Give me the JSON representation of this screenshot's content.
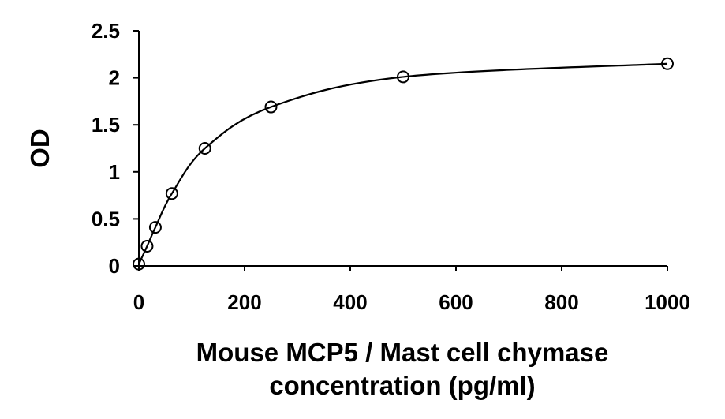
{
  "chart_data": {
    "type": "scatter",
    "title": "",
    "xlabel": [
      "Mouse MCP5 / Mast cell chymase",
      "concentration (pg/ml)"
    ],
    "ylabel": "OD",
    "xlim": [
      0,
      1000
    ],
    "ylim": [
      0,
      2.5
    ],
    "x_ticks": [
      0,
      200,
      400,
      600,
      800,
      1000
    ],
    "x_tick_labels": [
      "0",
      "200",
      "400",
      "600",
      "800",
      "1000"
    ],
    "y_ticks": [
      0,
      0.5,
      1,
      1.5,
      2,
      2.5
    ],
    "y_tick_labels": [
      "0",
      "0.5",
      "1",
      "1.5",
      "2",
      "2.5"
    ],
    "grid": false,
    "legend": "none",
    "marker_style": "open-circle",
    "fit_line": "smooth",
    "series": [
      {
        "x": [
          0,
          15.6,
          31.25,
          62.5,
          125,
          250,
          500,
          1000
        ],
        "y": [
          0.02,
          0.21,
          0.41,
          0.77,
          1.25,
          1.69,
          2.01,
          2.15
        ]
      }
    ],
    "colors": {
      "markers": "#000000",
      "line": "#000000",
      "text": "#000000",
      "background": "#ffffff"
    }
  }
}
